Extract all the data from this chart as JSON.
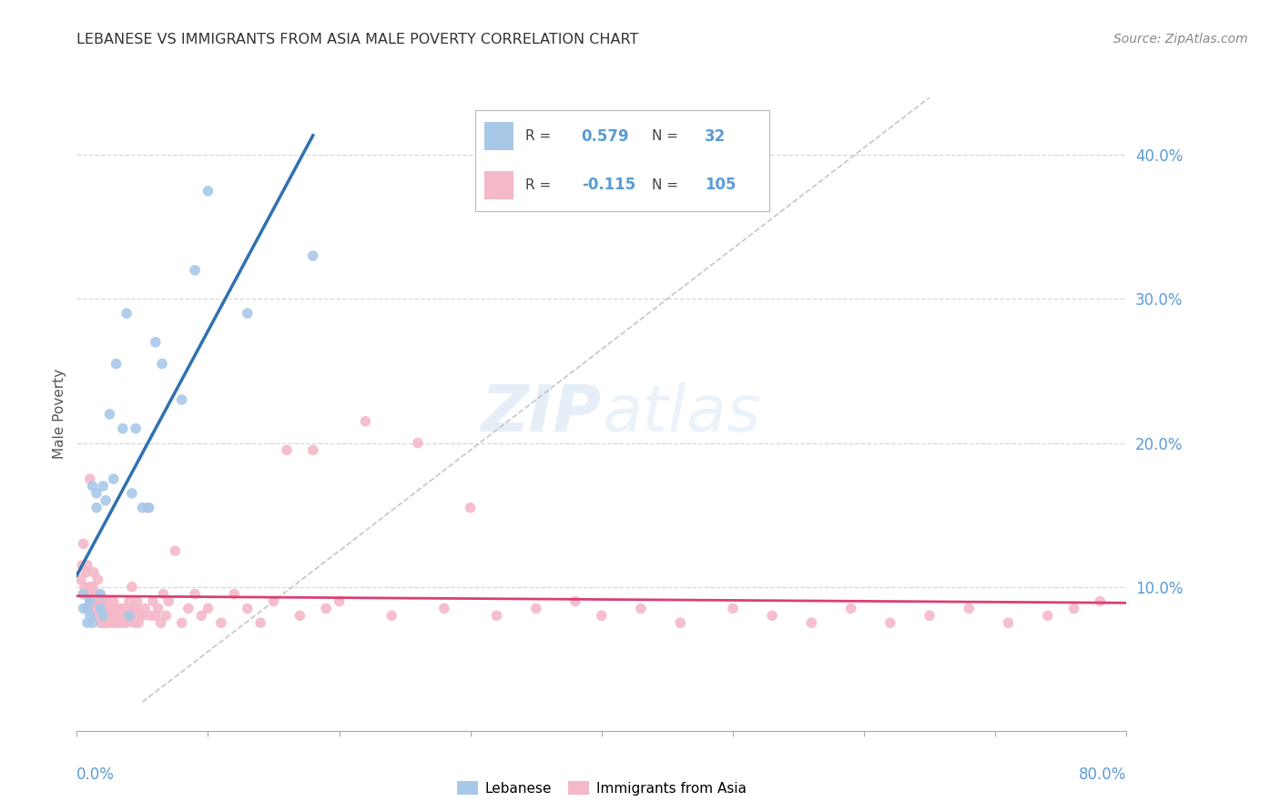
{
  "title": "LEBANESE VS IMMIGRANTS FROM ASIA MALE POVERTY CORRELATION CHART",
  "source": "Source: ZipAtlas.com",
  "ylabel": "Male Poverty",
  "yticks": [
    "10.0%",
    "20.0%",
    "30.0%",
    "40.0%"
  ],
  "ytick_vals": [
    0.1,
    0.2,
    0.3,
    0.4
  ],
  "xlim": [
    0.0,
    0.8
  ],
  "ylim": [
    0.0,
    0.44
  ],
  "watermark": "ZIPatlas",
  "blue_color": "#a8c8e8",
  "pink_color": "#f4b8c8",
  "blue_line_color": "#3070b0",
  "pink_line_color": "#d84070",
  "diag_line_color": "#c0c0c0",
  "background_color": "#ffffff",
  "grid_color": "#d0d8e8",
  "lebanese_x": [
    0.005,
    0.005,
    0.008,
    0.008,
    0.01,
    0.01,
    0.012,
    0.012,
    0.015,
    0.015,
    0.018,
    0.018,
    0.02,
    0.02,
    0.022,
    0.025,
    0.028,
    0.03,
    0.035,
    0.038,
    0.04,
    0.042,
    0.045,
    0.05,
    0.055,
    0.06,
    0.065,
    0.08,
    0.09,
    0.1,
    0.13,
    0.18
  ],
  "lebanese_y": [
    0.085,
    0.095,
    0.075,
    0.085,
    0.08,
    0.09,
    0.075,
    0.17,
    0.155,
    0.165,
    0.085,
    0.095,
    0.08,
    0.17,
    0.16,
    0.22,
    0.175,
    0.255,
    0.21,
    0.29,
    0.08,
    0.165,
    0.21,
    0.155,
    0.155,
    0.27,
    0.255,
    0.23,
    0.32,
    0.375,
    0.29,
    0.33
  ],
  "asia_x": [
    0.003,
    0.004,
    0.005,
    0.005,
    0.006,
    0.007,
    0.008,
    0.008,
    0.009,
    0.01,
    0.01,
    0.01,
    0.012,
    0.012,
    0.013,
    0.013,
    0.014,
    0.015,
    0.015,
    0.016,
    0.016,
    0.017,
    0.018,
    0.018,
    0.019,
    0.02,
    0.02,
    0.021,
    0.022,
    0.022,
    0.023,
    0.024,
    0.025,
    0.026,
    0.027,
    0.028,
    0.029,
    0.03,
    0.031,
    0.032,
    0.033,
    0.034,
    0.035,
    0.036,
    0.037,
    0.038,
    0.039,
    0.04,
    0.041,
    0.042,
    0.043,
    0.044,
    0.045,
    0.046,
    0.047,
    0.048,
    0.05,
    0.052,
    0.054,
    0.056,
    0.058,
    0.06,
    0.062,
    0.064,
    0.066,
    0.068,
    0.07,
    0.075,
    0.08,
    0.085,
    0.09,
    0.095,
    0.1,
    0.11,
    0.12,
    0.13,
    0.14,
    0.15,
    0.16,
    0.17,
    0.18,
    0.19,
    0.2,
    0.22,
    0.24,
    0.26,
    0.28,
    0.3,
    0.32,
    0.35,
    0.38,
    0.4,
    0.43,
    0.46,
    0.5,
    0.53,
    0.56,
    0.59,
    0.62,
    0.65,
    0.68,
    0.71,
    0.74,
    0.76,
    0.78
  ],
  "asia_y": [
    0.105,
    0.115,
    0.095,
    0.13,
    0.1,
    0.11,
    0.085,
    0.115,
    0.095,
    0.09,
    0.1,
    0.175,
    0.085,
    0.1,
    0.09,
    0.11,
    0.08,
    0.085,
    0.095,
    0.08,
    0.105,
    0.085,
    0.075,
    0.09,
    0.08,
    0.08,
    0.09,
    0.075,
    0.08,
    0.09,
    0.075,
    0.085,
    0.075,
    0.08,
    0.085,
    0.09,
    0.075,
    0.08,
    0.085,
    0.075,
    0.08,
    0.085,
    0.075,
    0.08,
    0.085,
    0.075,
    0.08,
    0.09,
    0.08,
    0.1,
    0.085,
    0.075,
    0.085,
    0.09,
    0.075,
    0.08,
    0.08,
    0.085,
    0.155,
    0.08,
    0.09,
    0.08,
    0.085,
    0.075,
    0.095,
    0.08,
    0.09,
    0.125,
    0.075,
    0.085,
    0.095,
    0.08,
    0.085,
    0.075,
    0.095,
    0.085,
    0.075,
    0.09,
    0.195,
    0.08,
    0.195,
    0.085,
    0.09,
    0.215,
    0.08,
    0.2,
    0.085,
    0.155,
    0.08,
    0.085,
    0.09,
    0.08,
    0.085,
    0.075,
    0.085,
    0.08,
    0.075,
    0.085,
    0.075,
    0.08,
    0.085,
    0.075,
    0.08,
    0.085,
    0.09
  ]
}
